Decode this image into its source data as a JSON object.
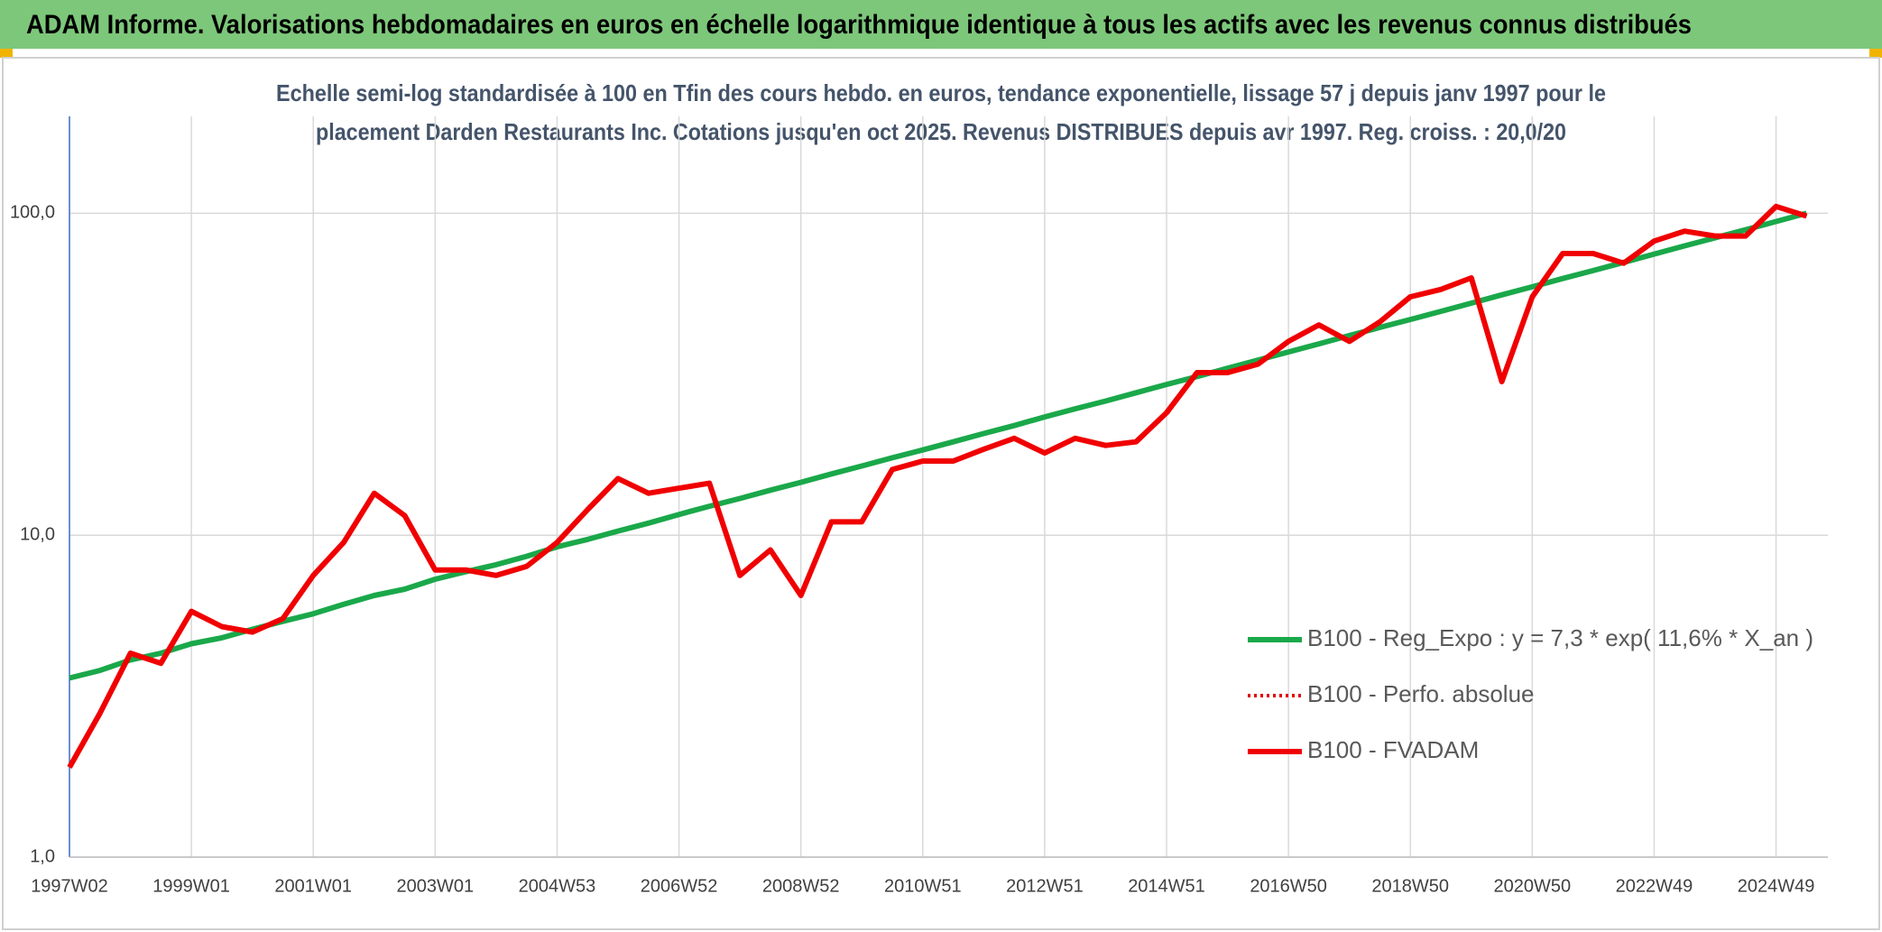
{
  "header": {
    "title": "ADAM Informe. Valorisations hebdomadaires en euros en échelle logarithmique identique à tous les actifs avec les revenus connus distribués"
  },
  "chart_data": {
    "type": "line",
    "subtitle": [
      "Echelle semi-log standardisée à 100 en Tfin des cours hebdo. en euros, tendance exponentielle, lissage 57 j depuis janv 1997 pour le",
      "placement Darden Restaurants Inc. Cotations jusqu'en oct 2025. Revenus DISTRIBUES depuis avr 1997. Reg. croiss. : 20,0/20"
    ],
    "categories": [
      "1997W02",
      null,
      null,
      null,
      "1999W01",
      null,
      null,
      null,
      "2001W01",
      null,
      null,
      null,
      "2003W01",
      null,
      null,
      null,
      "2004W53",
      null,
      null,
      null,
      "2006W52",
      null,
      null,
      null,
      "2008W52",
      null,
      null,
      null,
      "2010W51",
      null,
      null,
      null,
      "2012W51",
      null,
      null,
      null,
      "2014W51",
      null,
      null,
      null,
      "2016W50",
      null,
      null,
      null,
      "2018W50",
      null,
      null,
      null,
      "2020W50",
      null,
      null,
      null,
      "2022W49",
      null,
      null,
      null,
      "2024W49",
      null
    ],
    "log_scale": true,
    "ylim": [
      1,
      200
    ],
    "yticks": [
      {
        "value": 1,
        "label": "1,0"
      },
      {
        "value": 10,
        "label": "10,0"
      },
      {
        "value": 100,
        "label": "100,0"
      }
    ],
    "grid": true,
    "legend": "right",
    "series": [
      {
        "name": "B100 - Reg_Expo : y = 7,3 * exp( 11,6% *  X_an )",
        "color": "#1aa84a",
        "style": "solid",
        "values": [
          3.6,
          3.8,
          4.1,
          4.3,
          4.6,
          4.8,
          5.1,
          5.4,
          5.7,
          6.1,
          6.5,
          6.8,
          7.3,
          7.7,
          8.1,
          8.6,
          9.2,
          9.7,
          10.3,
          10.9,
          11.6,
          12.3,
          13.0,
          13.8,
          14.6,
          15.5,
          16.4,
          17.4,
          18.4,
          19.5,
          20.7,
          21.9,
          23.3,
          24.7,
          26.1,
          27.7,
          29.4,
          31.1,
          33.0,
          35.0,
          37.1,
          39.3,
          41.7,
          44.2,
          46.8,
          49.6,
          52.6,
          55.8,
          59.1,
          62.7,
          66.4,
          70.4,
          74.7,
          79.2,
          83.9,
          88.9,
          94.3,
          100
        ]
      },
      {
        "name": "B100 - Perfo. absolue",
        "color": "#e00000",
        "style": "dotted",
        "values": [
          1.9,
          2.8,
          4.3,
          4.0,
          5.8,
          5.2,
          5.0,
          5.5,
          7.5,
          9.5,
          13.5,
          11.5,
          7.8,
          7.8,
          7.5,
          8.0,
          9.5,
          12,
          15,
          13.5,
          14,
          14.5,
          7.5,
          9,
          6.5,
          11,
          11,
          16,
          17,
          17,
          18.5,
          20,
          18,
          20,
          19,
          19.5,
          24,
          32,
          32,
          34,
          40,
          45,
          40,
          46,
          55,
          58,
          63,
          30,
          55,
          75,
          75,
          70,
          82,
          88,
          85,
          85,
          105,
          98
        ]
      },
      {
        "name": "B100 - FVADAM",
        "color": "#f00000",
        "style": "solid",
        "values": [
          1.9,
          2.8,
          4.3,
          4.0,
          5.8,
          5.2,
          5.0,
          5.5,
          7.5,
          9.5,
          13.5,
          11.5,
          7.8,
          7.8,
          7.5,
          8.0,
          9.5,
          12,
          15,
          13.5,
          14,
          14.5,
          7.5,
          9,
          6.5,
          11,
          11,
          16,
          17,
          17,
          18.5,
          20,
          18,
          20,
          19,
          19.5,
          24,
          32,
          32,
          34,
          40,
          45,
          40,
          46,
          55,
          58,
          63,
          30,
          55,
          75,
          75,
          70,
          82,
          88,
          85,
          85,
          105,
          98
        ]
      }
    ]
  }
}
